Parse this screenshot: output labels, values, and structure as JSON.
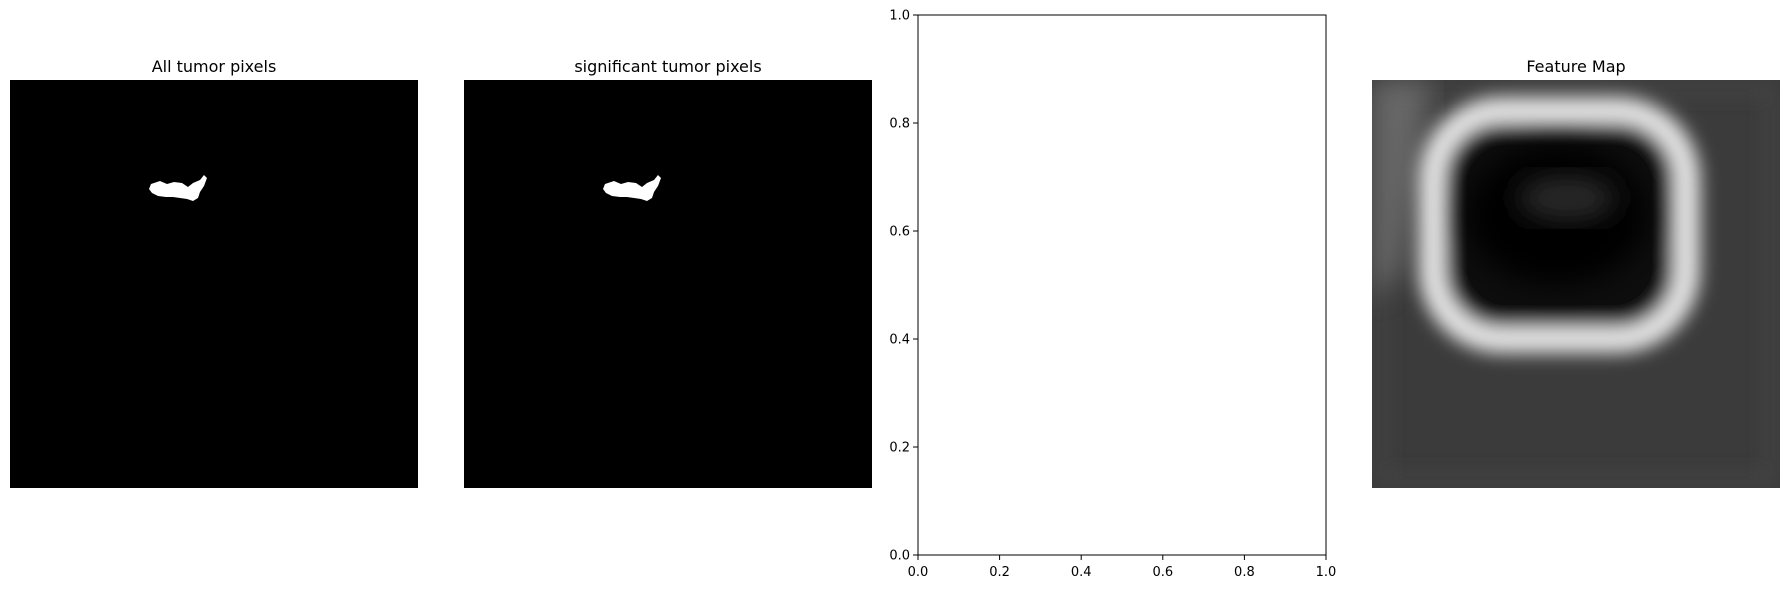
{
  "panels": [
    {
      "title": "All tumor pixels"
    },
    {
      "title": "significant tumor pixels"
    },
    {
      "title": ""
    },
    {
      "title": "Feature Map"
    }
  ],
  "chart_data": [
    {
      "type": "image",
      "title": "All tumor pixels",
      "colormap": "gray",
      "axes": "off"
    },
    {
      "type": "image",
      "title": "significant tumor pixels",
      "colormap": "gray",
      "axes": "off"
    },
    {
      "type": "scatter",
      "title": "",
      "series": [],
      "xlim": [
        0.0,
        1.0
      ],
      "ylim": [
        0.0,
        1.0
      ],
      "xticks": [
        "0.0",
        "0.2",
        "0.4",
        "0.6",
        "0.8",
        "1.0"
      ],
      "yticks": [
        "0.0",
        "0.2",
        "0.4",
        "0.6",
        "0.8",
        "1.0"
      ],
      "grid": false
    },
    {
      "type": "heatmap",
      "title": "Feature Map",
      "colormap": "gray",
      "axes": "off"
    }
  ]
}
